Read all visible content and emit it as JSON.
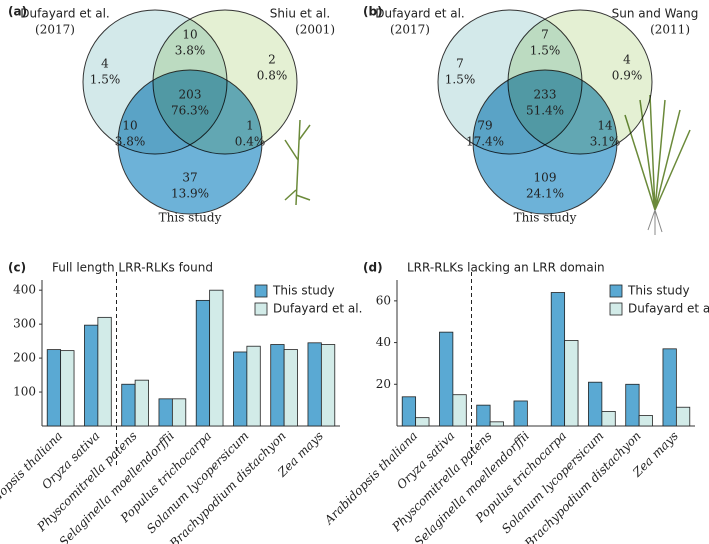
{
  "chart_data": [
    {
      "type": "venn",
      "panel": "(a)",
      "sets": [
        {
          "name": "Dufayard et al.",
          "year": "(2017)"
        },
        {
          "name": "Shiu et al.",
          "year": "(2001)"
        },
        {
          "name": "This study"
        }
      ],
      "colors": [
        "#d3e9ea",
        "#e4f0d3",
        "#6db2d8"
      ],
      "values": [
        4,
        10,
        2,
        203,
        10,
        1,
        37
      ],
      "percents": [
        1.5,
        3.8,
        0.8,
        76.3,
        3.8,
        0.4,
        13.9
      ],
      "percent_labels": [
        "1.5%",
        "3.8%",
        "0.8%",
        "76.3%",
        "3.8%",
        "0.4%",
        "13.9%"
      ]
    },
    {
      "type": "venn",
      "panel": "(b)",
      "sets": [
        {
          "name": "Dufayard et al.",
          "year": "(2017)"
        },
        {
          "name": "Sun and Wang",
          "year": "(2011)"
        },
        {
          "name": "This study"
        }
      ],
      "colors": [
        "#d3e9ea",
        "#e4f0d3",
        "#6db2d8"
      ],
      "values": [
        7,
        7,
        4,
        233,
        79,
        14,
        109
      ],
      "percents": [
        1.5,
        1.5,
        0.9,
        51.4,
        17.4,
        3.1,
        24.1
      ],
      "percent_labels": [
        "1.5%",
        "1.5%",
        "0.9%",
        "51.4%",
        "17.4%",
        "3.1%",
        "24.1%"
      ]
    },
    {
      "type": "bar",
      "panel": "(c)",
      "title": "Full length LRR-RLKs found",
      "categories": [
        "Arabidopsis thaliana",
        "Oryza sativa",
        "Physcomitrella patens",
        "Selaginella moellendorffii",
        "Populus trichocarpa",
        "Solanum lycopersicum",
        "Brachypodium distachyon",
        "Zea mays"
      ],
      "series": [
        {
          "name": "This study",
          "color": "#5aa9d3",
          "values": [
            225,
            297,
            123,
            80,
            370,
            218,
            240,
            245
          ]
        },
        {
          "name": "Dufayard et al.",
          "color": "#d2ebe8",
          "values": [
            222,
            320,
            135,
            80,
            400,
            235,
            225,
            240
          ]
        }
      ],
      "ylim": [
        0,
        430
      ],
      "yticks": [
        100,
        200,
        300,
        400
      ]
    },
    {
      "type": "bar",
      "panel": "(d)",
      "title": "LRR-RLKs lacking an LRR domain",
      "categories": [
        "Arabidopsis thaliana",
        "Oryza sativa",
        "Physcomitrella patens",
        "Selaginella moellendorffii",
        "Populus trichocarpa",
        "Solanum lycopersicum",
        "Brachypodium distachyon",
        "Zea mays"
      ],
      "series": [
        {
          "name": "This study",
          "color": "#5aa9d3",
          "values": [
            14,
            45,
            10,
            12,
            64,
            21,
            20,
            37
          ]
        },
        {
          "name": "Dufayard et al.",
          "color": "#d2ebe8",
          "values": [
            4,
            15,
            2,
            0,
            41,
            7,
            5,
            9
          ]
        }
      ],
      "ylim": [
        0,
        70
      ],
      "yticks": [
        20,
        40,
        60
      ]
    }
  ]
}
